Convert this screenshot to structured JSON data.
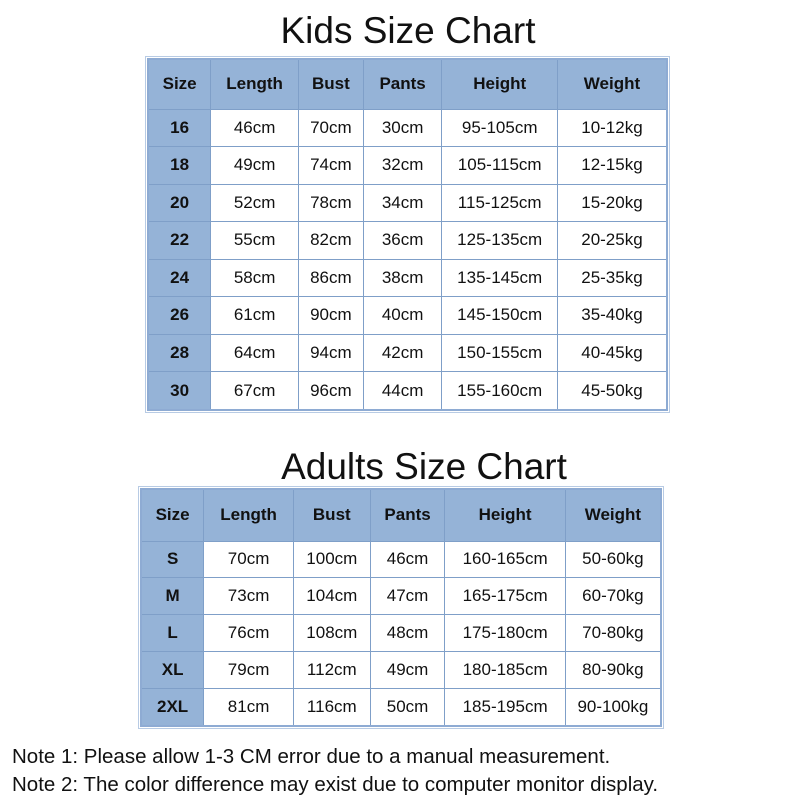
{
  "kids": {
    "title": "Kids Size Chart",
    "headers": [
      "Size",
      "Length",
      "Bust",
      "Pants",
      "Height",
      "Weight"
    ],
    "rows": [
      [
        "16",
        "46cm",
        "70cm",
        "30cm",
        "95-105cm",
        "10-12kg"
      ],
      [
        "18",
        "49cm",
        "74cm",
        "32cm",
        "105-115cm",
        "12-15kg"
      ],
      [
        "20",
        "52cm",
        "78cm",
        "34cm",
        "115-125cm",
        "15-20kg"
      ],
      [
        "22",
        "55cm",
        "82cm",
        "36cm",
        "125-135cm",
        "20-25kg"
      ],
      [
        "24",
        "58cm",
        "86cm",
        "38cm",
        "135-145cm",
        "25-35kg"
      ],
      [
        "26",
        "61cm",
        "90cm",
        "40cm",
        "145-150cm",
        "35-40kg"
      ],
      [
        "28",
        "64cm",
        "94cm",
        "42cm",
        "150-155cm",
        "40-45kg"
      ],
      [
        "30",
        "67cm",
        "96cm",
        "44cm",
        "155-160cm",
        "45-50kg"
      ]
    ]
  },
  "adults": {
    "title": "Adults Size Chart",
    "headers": [
      "Size",
      "Length",
      "Bust",
      "Pants",
      "Height",
      "Weight"
    ],
    "rows": [
      [
        "S",
        "70cm",
        "100cm",
        "46cm",
        "160-165cm",
        "50-60kg"
      ],
      [
        "M",
        "73cm",
        "104cm",
        "47cm",
        "165-175cm",
        "60-70kg"
      ],
      [
        "L",
        "76cm",
        "108cm",
        "48cm",
        "175-180cm",
        "70-80kg"
      ],
      [
        "XL",
        "79cm",
        "112cm",
        "49cm",
        "180-185cm",
        "80-90kg"
      ],
      [
        "2XL",
        "81cm",
        "116cm",
        "50cm",
        "185-195cm",
        "90-100kg"
      ]
    ]
  },
  "notes": [
    "Note 1: Please allow 1-3 CM error due to a manual measurement.",
    "Note 2: The color difference may exist due to computer monitor display."
  ],
  "colors": {
    "header_bg": "#95b3d7",
    "border": "#7f9fc8"
  }
}
